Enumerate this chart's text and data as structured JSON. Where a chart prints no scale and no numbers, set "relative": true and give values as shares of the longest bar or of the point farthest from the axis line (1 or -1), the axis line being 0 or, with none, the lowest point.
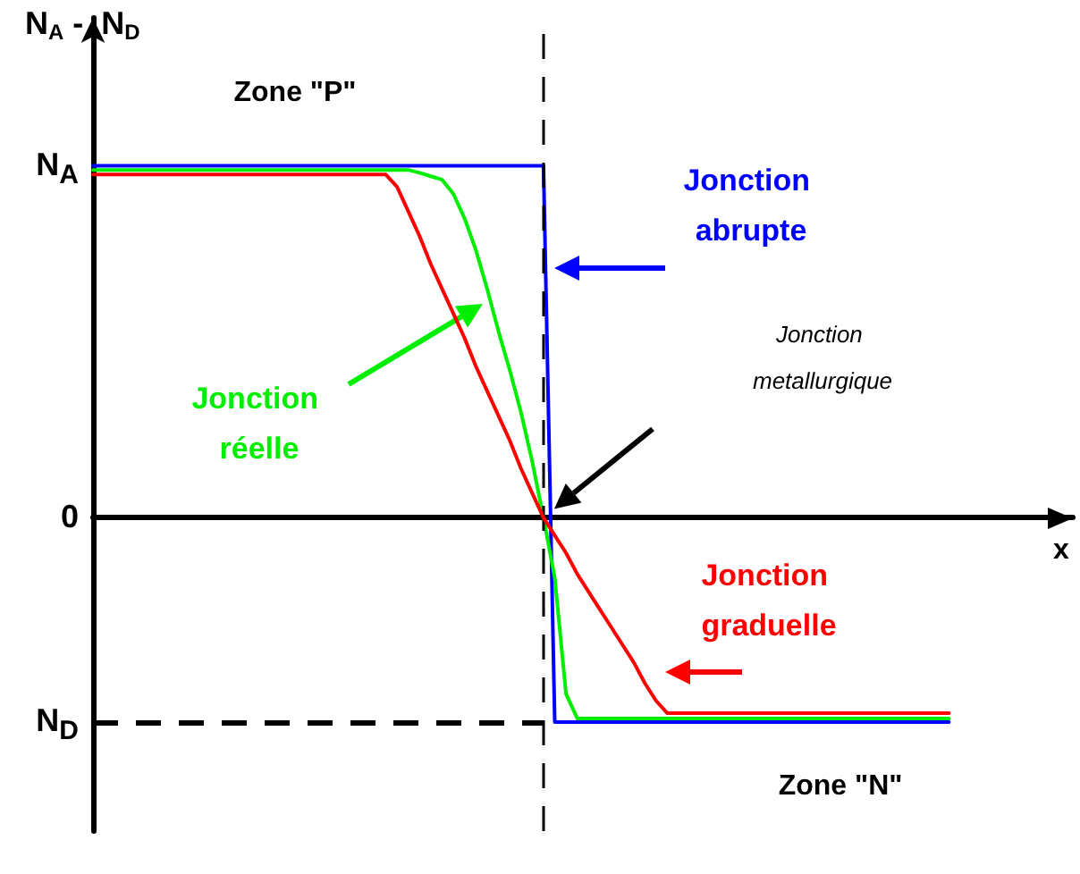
{
  "chart_data": {
    "type": "line",
    "ylabel": "N$_{A}$ -  N$_{D}$",
    "xlabel": "x",
    "relative": true,
    "grid": false,
    "legend": false,
    "line_style": "solid",
    "categories": [
      null,
      null,
      null,
      null,
      null,
      null,
      null,
      null,
      null,
      null,
      null,
      null,
      null,
      null,
      null,
      null,
      null,
      null,
      null,
      null,
      null,
      null,
      null,
      null,
      null,
      null,
      null,
      null,
      null,
      null,
      null,
      null,
      null,
      null,
      null,
      null,
      null,
      null,
      null,
      null,
      null,
      null,
      null,
      null,
      null,
      null,
      null,
      null,
      null,
      null,
      null,
      null,
      null,
      null,
      null,
      null,
      null,
      null,
      null,
      null,
      null,
      null,
      null,
      null,
      null,
      null,
      null,
      null,
      null,
      null,
      null,
      null,
      null,
      null,
      null,
      null,
      null,
      null,
      null,
      null,
      null,
      null,
      null,
      null,
      null,
      null,
      null,
      null
    ],
    "series": [
      {
        "name": "Jonction abrupte",
        "color": "#0000ff",
        "values": [
          1,
          1,
          1,
          1,
          1,
          1,
          1,
          1,
          1,
          1,
          1,
          1,
          1,
          1,
          1,
          1,
          1,
          1,
          1,
          1,
          1,
          1,
          1,
          1,
          1,
          1,
          1,
          1,
          1,
          1,
          1,
          1,
          1,
          1,
          1,
          1,
          1,
          1,
          1,
          1,
          1,
          -0.58,
          -0.58,
          -0.58,
          -0.58,
          -0.58,
          -0.58,
          -0.58,
          -0.58,
          -0.58,
          -0.58,
          -0.58,
          -0.58,
          -0.58,
          -0.58,
          -0.58,
          -0.58,
          -0.58,
          -0.58,
          -0.58,
          -0.58,
          -0.58,
          -0.58,
          -0.58,
          -0.58,
          -0.58,
          -0.58,
          -0.58,
          -0.58,
          -0.58,
          -0.58,
          -0.58,
          -0.58,
          -0.58,
          -0.58,
          -0.58,
          -0.58,
          null,
          null,
          null,
          null,
          null,
          null,
          null,
          null,
          null,
          null,
          null
        ]
      },
      {
        "name": "Jonction réelle",
        "color": "#00ee00",
        "values": [
          0.988,
          0.988,
          0.988,
          0.988,
          0.988,
          0.988,
          0.988,
          0.988,
          0.988,
          0.988,
          0.988,
          0.988,
          0.988,
          0.988,
          0.988,
          0.988,
          0.988,
          0.988,
          0.988,
          0.988,
          0.988,
          0.988,
          0.988,
          0.988,
          0.988,
          0.988,
          0.988,
          0.988,
          0.988,
          0.98,
          0.97,
          0.96,
          0.92,
          0.85,
          0.76,
          0.65,
          0.53,
          0.42,
          0.3,
          0.16,
          0,
          -0.17,
          -0.5,
          -0.57,
          -0.57,
          -0.57,
          -0.57,
          -0.57,
          -0.57,
          -0.57,
          -0.57,
          -0.57,
          -0.57,
          -0.57,
          -0.57,
          -0.57,
          -0.57,
          -0.57,
          -0.57,
          -0.57,
          -0.57,
          -0.57,
          -0.57,
          -0.57,
          -0.57,
          -0.57,
          -0.57,
          -0.57,
          -0.57,
          -0.57,
          -0.57,
          -0.57,
          -0.57,
          -0.57,
          -0.57,
          -0.57,
          -0.57,
          null,
          null,
          null,
          null,
          null,
          null,
          null,
          null,
          null,
          null,
          null
        ]
      },
      {
        "name": "Jonction graduelle",
        "color": "#ff0000",
        "values": [
          0.975,
          0.975,
          0.975,
          0.975,
          0.975,
          0.975,
          0.975,
          0.975,
          0.975,
          0.975,
          0.975,
          0.975,
          0.975,
          0.975,
          0.975,
          0.975,
          0.975,
          0.975,
          0.975,
          0.975,
          0.975,
          0.975,
          0.975,
          0.975,
          0.975,
          0.975,
          0.975,
          0.94,
          0.87,
          0.8,
          0.72,
          0.65,
          0.58,
          0.51,
          0.43,
          0.36,
          0.29,
          0.22,
          0.14,
          0.07,
          0,
          -0.05,
          -0.1,
          -0.16,
          -0.21,
          -0.26,
          -0.31,
          -0.36,
          -0.41,
          -0.47,
          -0.52,
          -0.555,
          -0.555,
          -0.555,
          -0.555,
          -0.555,
          -0.555,
          -0.555,
          -0.555,
          -0.555,
          -0.555,
          -0.555,
          -0.555,
          -0.555,
          -0.555,
          -0.555,
          -0.555,
          -0.555,
          -0.555,
          -0.555,
          -0.555,
          -0.555,
          -0.555,
          -0.555,
          -0.555,
          -0.555,
          -0.555,
          null,
          null,
          null,
          null,
          null,
          null,
          null,
          null,
          null,
          null,
          null
        ]
      }
    ],
    "ref_lines": [
      {
        "axis": "y",
        "value": -0.58,
        "color": "#000000",
        "line_style": "dashed"
      },
      {
        "axis": "x",
        "color": "#000000",
        "line_style": "dashed"
      }
    ],
    "annotations": [
      "Zone \"P\"",
      "Zone \"N\"",
      "Jonction metallurgique",
      "N$_{A}$",
      "0",
      "N$_{D}$"
    ]
  }
}
